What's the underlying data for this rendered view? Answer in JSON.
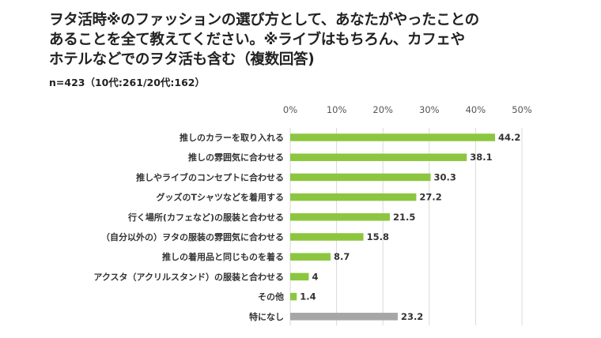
{
  "chart_data": {
    "type": "bar",
    "orientation": "horizontal",
    "title_lines": [
      "ヲタ活時※のファッションの選び方として、あなたがやったことの",
      "あることを全て教えてください。※ライブはもちろん、カフェや",
      "ホテルなどでのヲタ活も含む（複数回答)"
    ],
    "subtitle": "n=423（10代:261/20代:162）",
    "categories": [
      "推しのカラーを取り入れる",
      "推しの雰囲気に合わせる",
      "推しやライブのコンセプトに合わせる",
      "グッズのTシャツなどを着用する",
      "行く場所(カフェなど)の服装と合わせる",
      "（自分以外の）ヲタの服装の雰囲気に合わせる",
      "推しの着用品と同じものを着る",
      "アクスタ（アクリルスタンド）の服装と合わせる",
      "その他",
      "特になし"
    ],
    "values": [
      44.2,
      38.1,
      30.3,
      27.2,
      21.5,
      15.8,
      8.7,
      4,
      1.4,
      23.2
    ],
    "value_labels": [
      "44.2",
      "38.1",
      "30.3",
      "27.2",
      "21.5",
      "15.8",
      "8.7",
      "4",
      "1.4",
      "23.2"
    ],
    "xlim": [
      0,
      50
    ],
    "xticks": [
      "0%",
      "10%",
      "20%",
      "30%",
      "40%",
      "50%"
    ],
    "xlabel": "",
    "ylabel": "",
    "grid": true,
    "colors": {
      "bar": "#8cc63f",
      "last_bar": "#a6a6a6",
      "grid": "#d9d9d9"
    }
  }
}
